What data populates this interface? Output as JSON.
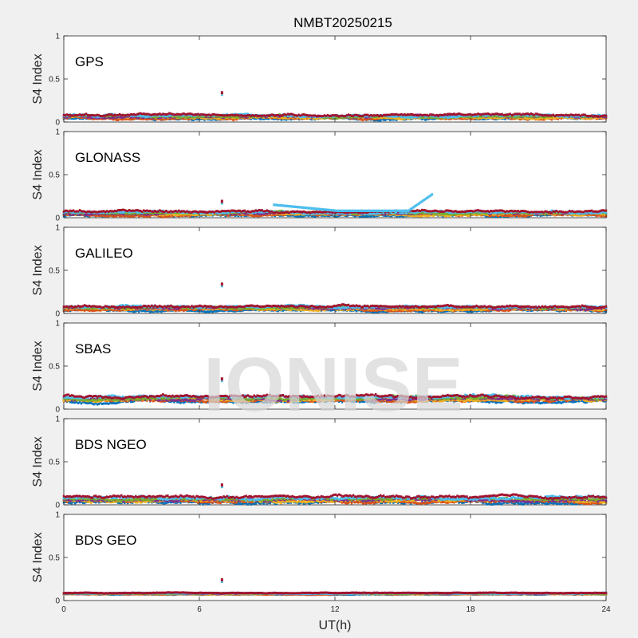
{
  "chart_data": {
    "type": "scatter",
    "title": "NMBT20250215",
    "xlabel": "UT(h)",
    "ylabel": "S4 Index",
    "xlim": [
      0,
      24
    ],
    "ylim": [
      0,
      1
    ],
    "xticks": [
      "0",
      "6",
      "12",
      "18",
      "24"
    ],
    "yticks": [
      "0",
      "0.5",
      "1"
    ],
    "watermark": "IONISE",
    "series_colors": [
      "#0072bd",
      "#d95319",
      "#edb120",
      "#7e2f8e",
      "#77ac30",
      "#4dbeee",
      "#a2142f"
    ],
    "panels": [
      {
        "label": "GPS",
        "base": 0.06,
        "spread": 0.03,
        "outlier": {
          "x": 7.0,
          "y": 0.34
        }
      },
      {
        "label": "GLONASS",
        "base": 0.05,
        "spread": 0.03,
        "outlier": {
          "x": 7.0,
          "y": 0.19
        },
        "arc": {
          "x_start": 9.3,
          "x_end": 16.3,
          "y_start": 0.15,
          "y_mid": 0.08,
          "y_end": 0.27
        }
      },
      {
        "label": "GALILEO",
        "base": 0.06,
        "spread": 0.03,
        "outlier": {
          "x": 7.0,
          "y": 0.34
        }
      },
      {
        "label": "SBAS",
        "base": 0.12,
        "spread": 0.04,
        "outlier": {
          "x": 7.0,
          "y": 0.35
        }
      },
      {
        "label": "BDS NGEO",
        "base": 0.06,
        "spread": 0.04,
        "outlier": {
          "x": 7.0,
          "y": 0.23
        }
      },
      {
        "label": "BDS GEO",
        "base": 0.08,
        "spread": 0.01,
        "outlier": {
          "x": 7.0,
          "y": 0.24
        }
      }
    ]
  }
}
